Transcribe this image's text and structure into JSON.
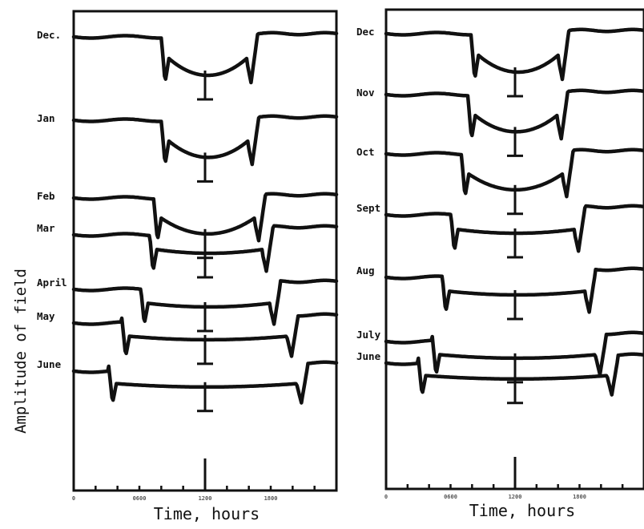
{
  "chart_data": [
    {
      "type": "line",
      "title": "",
      "xlabel": "Time, hours",
      "ylabel": "Amplitude of field",
      "x_ticks": [
        "0",
        "0600",
        "1200",
        "1800"
      ],
      "series": [
        {
          "name": "Dec.",
          "sunrise": 8.0,
          "sunset": 15.8
        },
        {
          "name": "Jan",
          "sunrise": 8.0,
          "sunset": 15.9
        },
        {
          "name": "Feb",
          "sunrise": 7.3,
          "sunset": 16.5
        },
        {
          "name": "Mar",
          "sunrise": 6.9,
          "sunset": 17.2
        },
        {
          "name": "April",
          "sunrise": 6.1,
          "sunset": 17.9
        },
        {
          "name": "May",
          "sunrise": 4.4,
          "sunset": 19.5
        },
        {
          "name": "June",
          "sunrise": 3.2,
          "sunset": 20.4
        }
      ]
    },
    {
      "type": "line",
      "title": "",
      "xlabel": "Time, hours",
      "ylabel": "",
      "x_ticks": [
        "0",
        "0600",
        "1200",
        "1800"
      ],
      "series": [
        {
          "name": "Dec",
          "sunrise": 7.9,
          "sunset": 16.0
        },
        {
          "name": "Nov",
          "sunrise": 7.6,
          "sunset": 15.9
        },
        {
          "name": "Oct",
          "sunrise": 7.0,
          "sunset": 16.4
        },
        {
          "name": "Sept",
          "sunrise": 6.0,
          "sunset": 17.5
        },
        {
          "name": "Aug",
          "sunrise": 5.2,
          "sunset": 18.5
        },
        {
          "name": "July",
          "sunrise": 4.3,
          "sunset": 19.5
        },
        {
          "name": "June",
          "sunrise": 3.0,
          "sunset": 20.6
        }
      ]
    }
  ]
}
